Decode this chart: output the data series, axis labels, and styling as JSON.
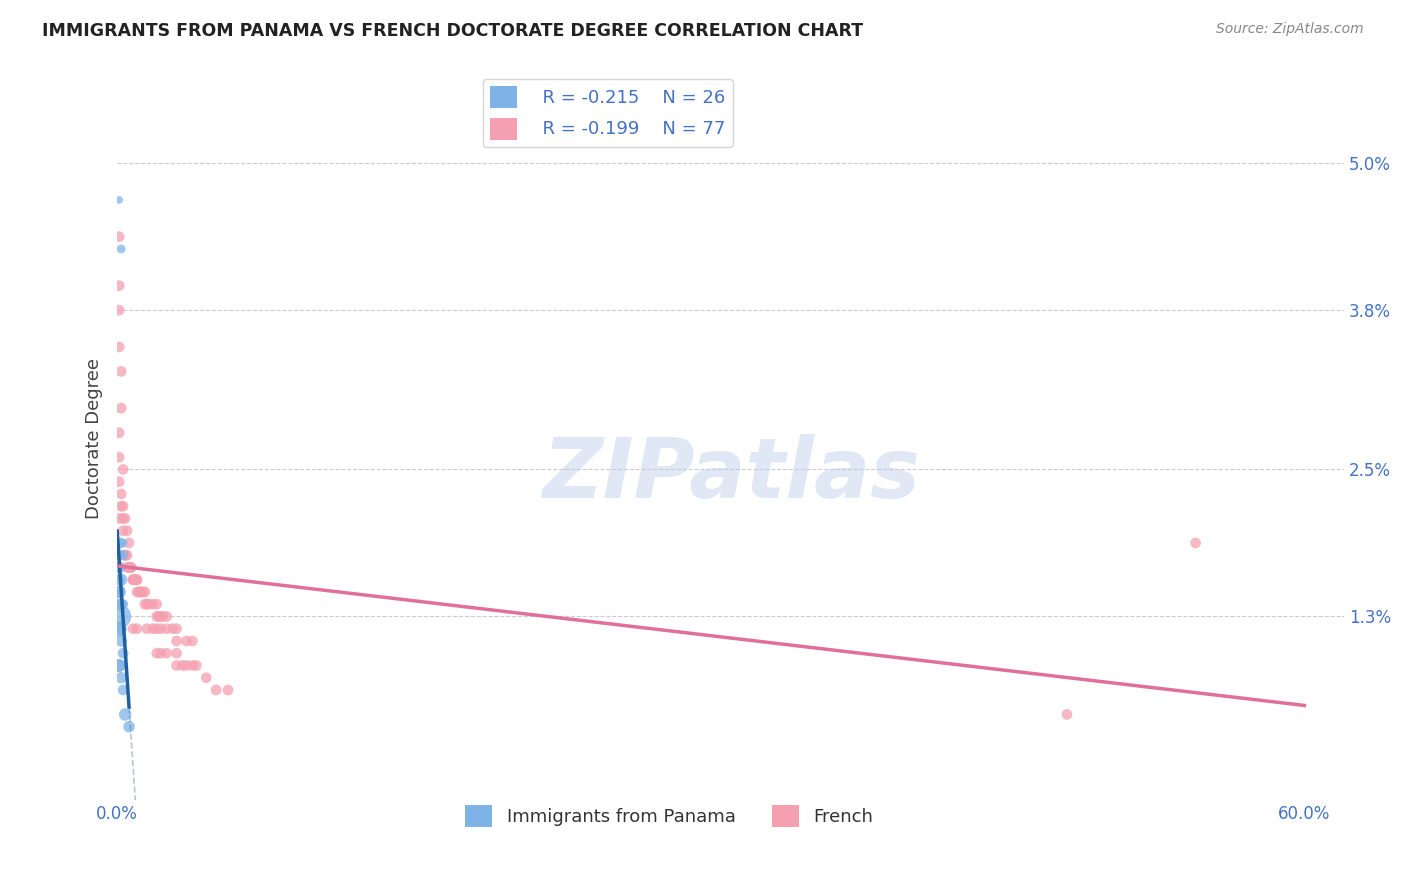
{
  "title": "IMMIGRANTS FROM PANAMA VS FRENCH DOCTORATE DEGREE CORRELATION CHART",
  "source": "Source: ZipAtlas.com",
  "xlabel_blue": "Immigrants from Panama",
  "xlabel_pink": "French",
  "ylabel": "Doctorate Degree",
  "xlim": [
    0.0,
    0.62
  ],
  "ylim": [
    -0.002,
    0.057
  ],
  "ytick_vals": [
    0.013,
    0.025,
    0.038,
    0.05
  ],
  "ytick_labels": [
    "1.3%",
    "2.5%",
    "3.8%",
    "5.0%"
  ],
  "xtick_vals": [
    0.0,
    0.2,
    0.4,
    0.6
  ],
  "xtick_labels": [
    "0.0%",
    "",
    "",
    "60.0%"
  ],
  "legend_blue_R": "R = -0.215",
  "legend_blue_N": "N = 26",
  "legend_pink_R": "R = -0.199",
  "legend_pink_N": "N = 77",
  "blue_color": "#7fb3e8",
  "pink_color": "#f4a0b0",
  "blue_line_color": "#2060a0",
  "pink_line_color": "#e0709a",
  "blue_scatter_x": [
    0.001,
    0.002,
    0.001,
    0.001,
    0.003,
    0.003,
    0.001,
    0.001,
    0.001,
    0.002,
    0.001,
    0.001,
    0.001,
    0.003,
    0.002,
    0.001,
    0.001,
    0.001,
    0.002,
    0.003,
    0.001,
    0.001,
    0.002,
    0.003,
    0.004,
    0.006
  ],
  "blue_scatter_y": [
    0.047,
    0.043,
    0.019,
    0.018,
    0.019,
    0.018,
    0.017,
    0.017,
    0.016,
    0.016,
    0.015,
    0.015,
    0.014,
    0.014,
    0.014,
    0.013,
    0.012,
    0.012,
    0.011,
    0.01,
    0.009,
    0.009,
    0.008,
    0.007,
    0.005,
    0.004
  ],
  "blue_scatter_s": [
    30,
    40,
    70,
    50,
    40,
    50,
    60,
    70,
    60,
    80,
    70,
    90,
    60,
    50,
    70,
    300,
    120,
    100,
    70,
    60,
    90,
    80,
    70,
    60,
    80,
    70
  ],
  "pink_scatter_x": [
    0.001,
    0.001,
    0.001,
    0.001,
    0.002,
    0.002,
    0.001,
    0.001,
    0.003,
    0.001,
    0.002,
    0.002,
    0.003,
    0.003,
    0.004,
    0.001,
    0.005,
    0.003,
    0.006,
    0.002,
    0.004,
    0.005,
    0.004,
    0.005,
    0.007,
    0.006,
    0.006,
    0.007,
    0.008,
    0.008,
    0.009,
    0.009,
    0.009,
    0.01,
    0.01,
    0.01,
    0.012,
    0.012,
    0.011,
    0.013,
    0.014,
    0.014,
    0.015,
    0.016,
    0.018,
    0.02,
    0.02,
    0.021,
    0.022,
    0.023,
    0.025,
    0.008,
    0.01,
    0.015,
    0.018,
    0.02,
    0.022,
    0.025,
    0.028,
    0.03,
    0.03,
    0.035,
    0.038,
    0.02,
    0.022,
    0.025,
    0.03,
    0.03,
    0.033,
    0.035,
    0.038,
    0.04,
    0.045,
    0.05,
    0.056,
    0.545,
    0.48
  ],
  "pink_scatter_y": [
    0.044,
    0.04,
    0.038,
    0.035,
    0.033,
    0.03,
    0.028,
    0.026,
    0.025,
    0.024,
    0.023,
    0.022,
    0.022,
    0.021,
    0.021,
    0.021,
    0.02,
    0.02,
    0.019,
    0.018,
    0.018,
    0.018,
    0.018,
    0.017,
    0.017,
    0.017,
    0.017,
    0.017,
    0.016,
    0.016,
    0.016,
    0.016,
    0.016,
    0.016,
    0.016,
    0.015,
    0.015,
    0.015,
    0.015,
    0.015,
    0.015,
    0.014,
    0.014,
    0.014,
    0.014,
    0.014,
    0.013,
    0.013,
    0.013,
    0.013,
    0.013,
    0.012,
    0.012,
    0.012,
    0.012,
    0.012,
    0.012,
    0.012,
    0.012,
    0.012,
    0.011,
    0.011,
    0.011,
    0.01,
    0.01,
    0.01,
    0.01,
    0.009,
    0.009,
    0.009,
    0.009,
    0.009,
    0.008,
    0.007,
    0.007,
    0.019,
    0.005
  ],
  "pink_scatter_s": [
    60,
    60,
    60,
    60,
    60,
    60,
    60,
    60,
    60,
    60,
    60,
    60,
    60,
    60,
    60,
    60,
    60,
    60,
    60,
    60,
    60,
    60,
    60,
    60,
    60,
    60,
    60,
    60,
    60,
    60,
    60,
    60,
    60,
    60,
    60,
    60,
    60,
    60,
    60,
    60,
    60,
    60,
    60,
    60,
    60,
    60,
    60,
    60,
    60,
    60,
    60,
    60,
    60,
    60,
    60,
    60,
    60,
    60,
    60,
    60,
    60,
    60,
    60,
    60,
    60,
    60,
    60,
    60,
    60,
    60,
    60,
    60,
    60,
    60,
    60,
    60,
    60
  ],
  "watermark_text": "ZIPatlas",
  "background_color": "#ffffff"
}
